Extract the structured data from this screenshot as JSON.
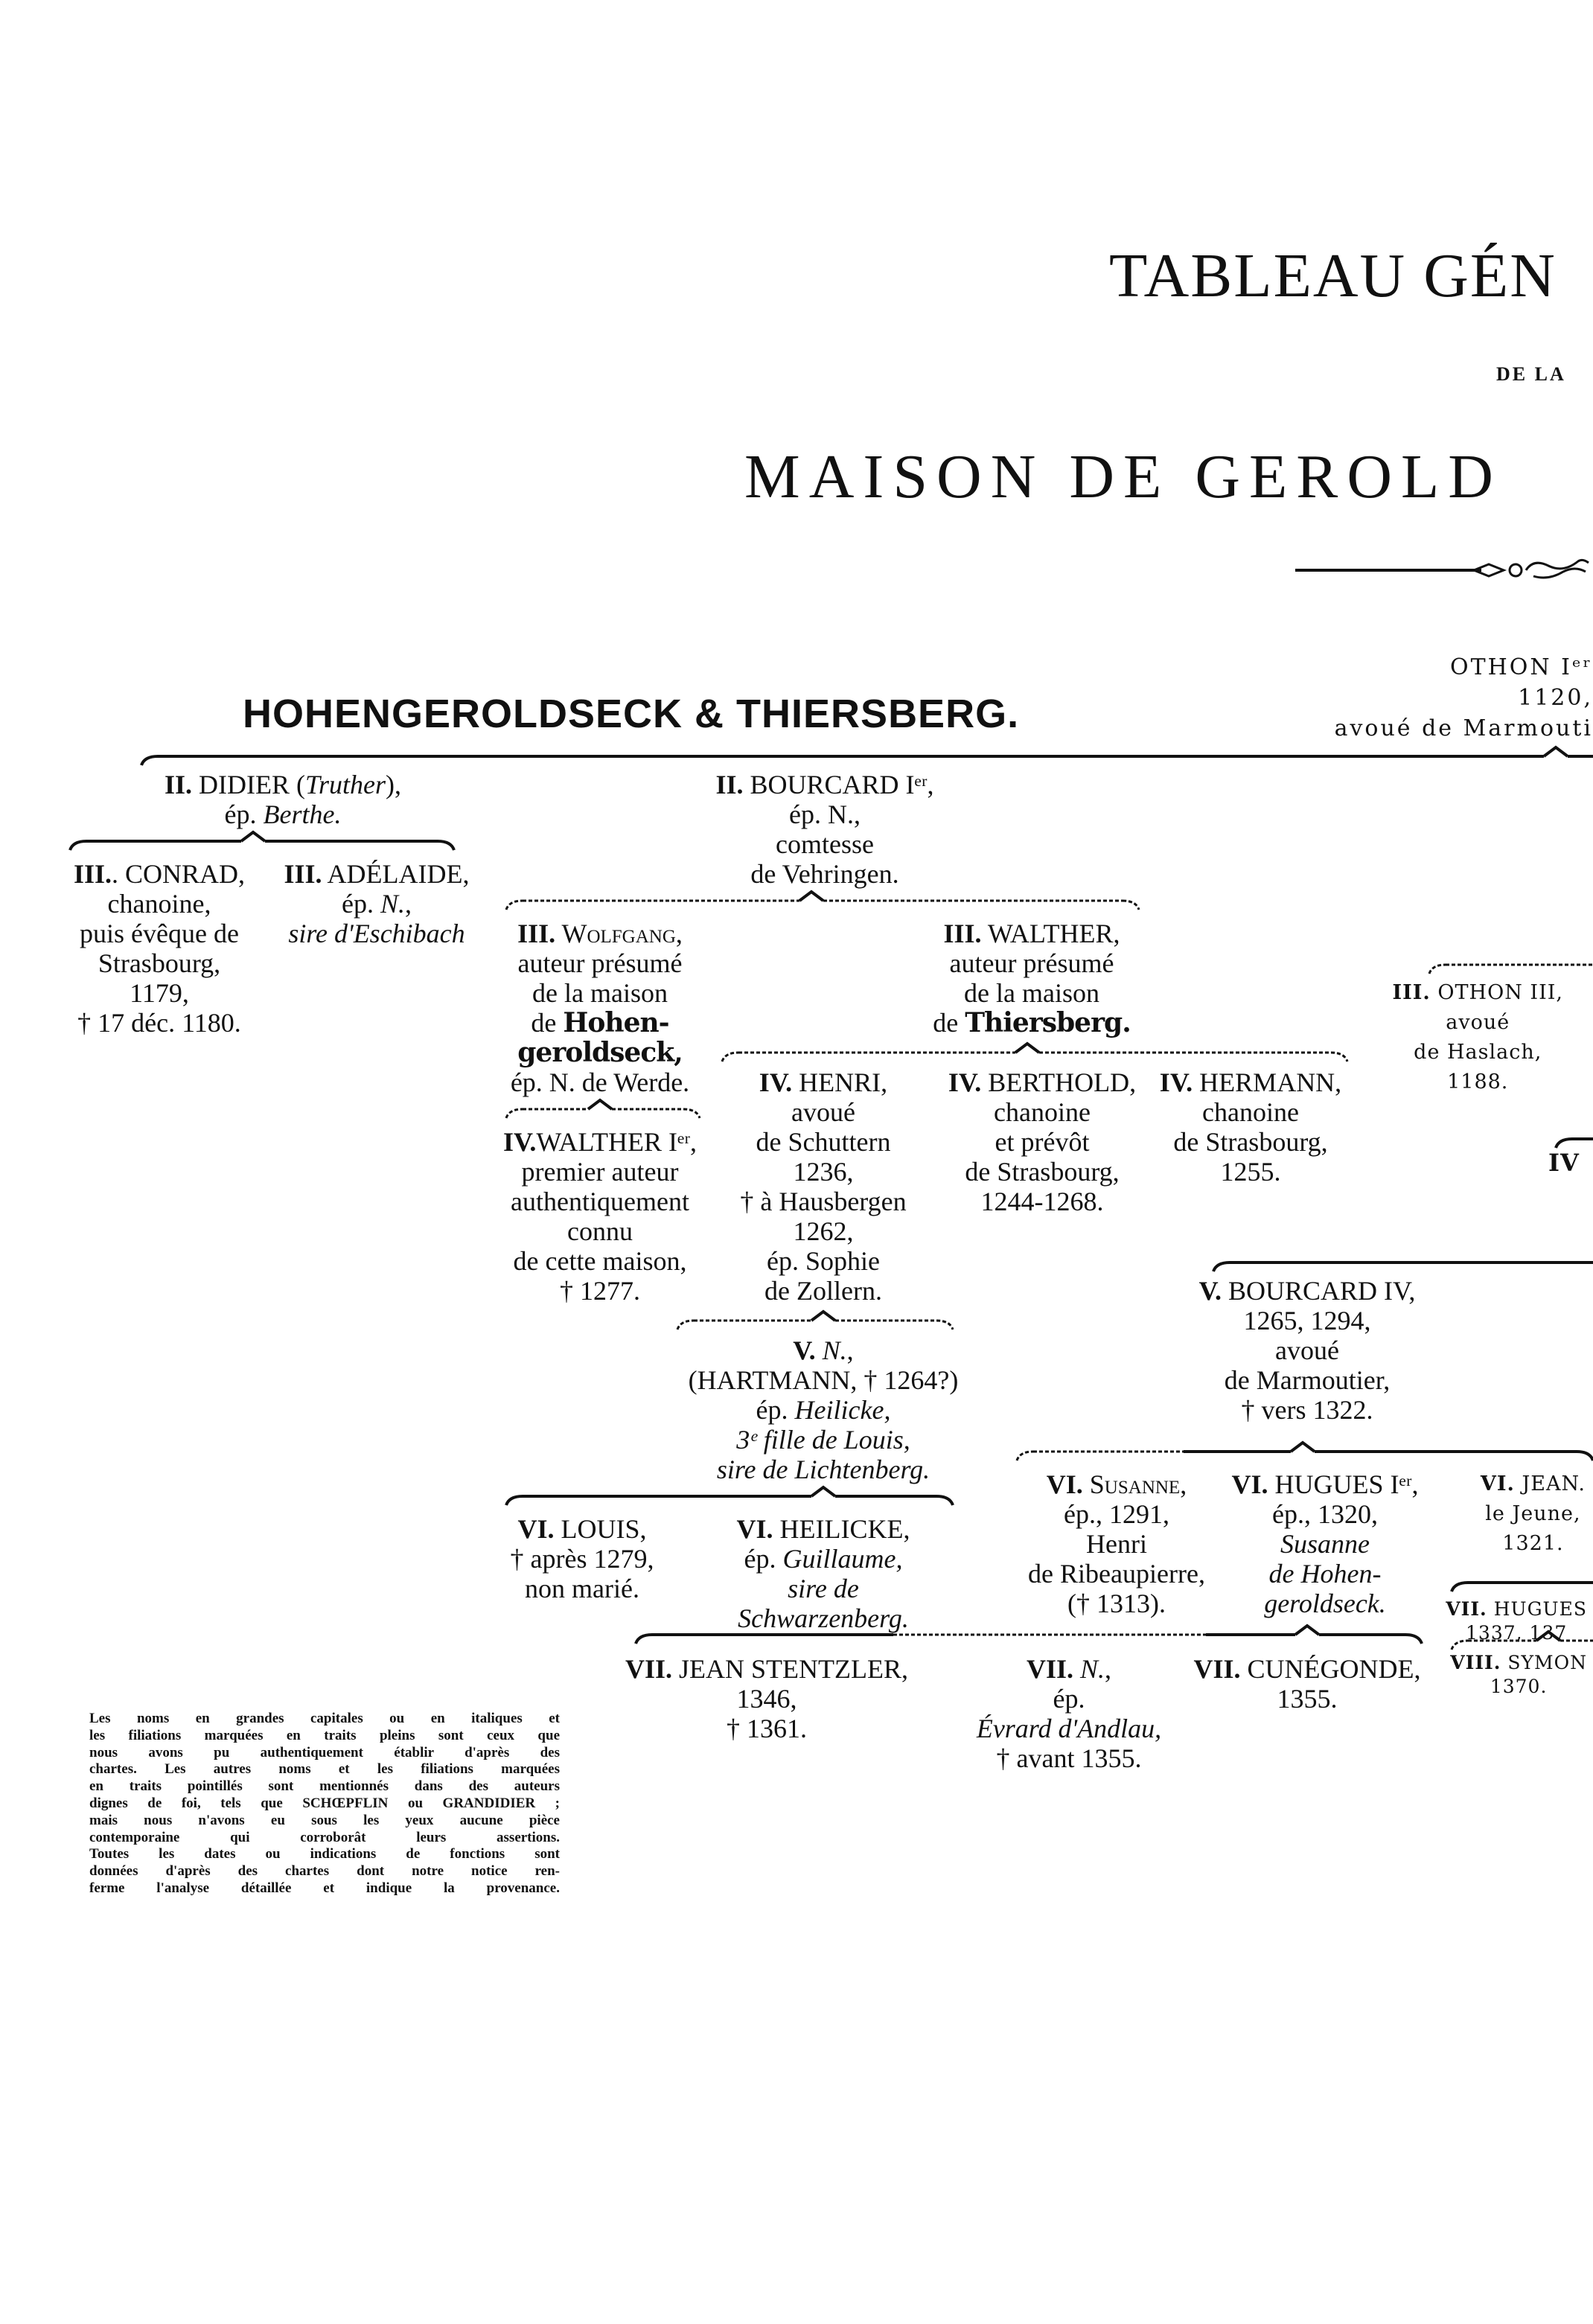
{
  "header": {
    "title": "TABLEAU GÉN",
    "connector": "DE LA",
    "subtitle": "MAISON DE GEROLD",
    "branch_title": "HOHENGEROLDSECK & THIERSBERG."
  },
  "othon1": [
    "OTHON Iᵉʳ",
    "1120,",
    "avoué de Marmouti"
  ],
  "partial_label": "IV",
  "nodes": {
    "didier": [
      [
        [
          "II.",
          "b"
        ],
        [
          " DIDIER (",
          ""
        ],
        [
          "Truther",
          "i"
        ],
        [
          "),",
          ""
        ]
      ],
      [
        [
          "ép. ",
          ""
        ],
        [
          "Berthe.",
          "i"
        ]
      ]
    ],
    "conrad": [
      [
        [
          "III.",
          "b"
        ],
        [
          ". CONRAD,",
          ""
        ]
      ],
      "chanoine,",
      "puis évêque de",
      "Strasbourg,",
      "1179,",
      "† 17 déc. 1180."
    ],
    "adelaide": [
      [
        [
          "III.",
          "b"
        ],
        [
          " ADÉLAIDE,",
          ""
        ]
      ],
      [
        [
          "ép. ",
          ""
        ],
        [
          "N.",
          "i"
        ],
        [
          ",",
          ""
        ]
      ],
      [
        [
          "sire d'Eschibach",
          "i"
        ]
      ]
    ],
    "bourcard1": [
      [
        [
          "II.",
          "b"
        ],
        [
          " BOURCARD Iᵉʳ,",
          ""
        ]
      ],
      "ép. N.,",
      "comtesse",
      "de Vehringen."
    ],
    "wolfgang": [
      [
        [
          "III.",
          "b"
        ],
        [
          " Wolfgang,",
          "sc"
        ]
      ],
      "auteur présumé",
      "de la maison",
      [
        [
          "de ",
          ""
        ],
        [
          "Hohen-",
          "bold"
        ]
      ],
      [
        [
          "geroldseck,",
          "bold"
        ]
      ],
      "ép. N. de Werde."
    ],
    "walther1": [
      [
        [
          "IV.",
          "b"
        ],
        [
          "WALTHER Iᵉʳ,",
          ""
        ]
      ],
      "premier auteur",
      "authentiquement",
      "connu",
      "de cette maison,",
      "† 1277."
    ],
    "walther3": [
      [
        [
          "III.",
          "b"
        ],
        [
          " WALTHER,",
          ""
        ]
      ],
      "auteur présumé",
      "de la maison",
      [
        [
          "de ",
          ""
        ],
        [
          "Thiersberg.",
          "bold"
        ]
      ]
    ],
    "henri": [
      [
        [
          "IV.",
          "b"
        ],
        [
          " HENRI,",
          ""
        ]
      ],
      "avoué",
      "de Schuttern",
      "1236,",
      "† à Hausbergen",
      "1262,",
      "ép. Sophie",
      "de Zollern."
    ],
    "berthold": [
      [
        [
          "IV.",
          "b"
        ],
        [
          " BERTHOLD,",
          ""
        ]
      ],
      "chanoine",
      "et prévôt",
      "de Strasbourg,",
      "1244-1268."
    ],
    "hermann": [
      [
        [
          "IV.",
          "b"
        ],
        [
          " HERMANN,",
          ""
        ]
      ],
      "chanoine",
      "de Strasbourg,",
      "1255."
    ],
    "othon3": [
      [
        [
          "III.",
          "b"
        ],
        [
          " OTHON III,",
          ""
        ]
      ],
      "avoué",
      "de Haslach,",
      "1188."
    ],
    "vn": [
      [
        [
          "V.",
          "b"
        ],
        [
          " ",
          ""
        ],
        [
          "N.",
          "i"
        ],
        [
          ",",
          ""
        ]
      ],
      "(HARTMANN, † 1264?)",
      [
        [
          "ép. ",
          ""
        ],
        [
          "Heilicke,",
          "i"
        ]
      ],
      [
        [
          "3ᵉ fille de Louis,",
          "i"
        ]
      ],
      [
        [
          "sire de Lichtenberg.",
          "i"
        ]
      ]
    ],
    "bourcard4": [
      [
        [
          "V.",
          "b"
        ],
        [
          " BOURCARD IV,",
          ""
        ]
      ],
      "1265, 1294,",
      "avoué",
      "de Marmoutier,",
      "† vers 1322."
    ],
    "louis": [
      [
        [
          "VI.",
          "b"
        ],
        [
          " LOUIS,",
          ""
        ]
      ],
      "† après 1279,",
      "non marié."
    ],
    "heilicke": [
      [
        [
          "VI.",
          "b"
        ],
        [
          " HEILICKE,",
          ""
        ]
      ],
      [
        [
          "ép. ",
          ""
        ],
        [
          "Guillaume,",
          "i"
        ]
      ],
      [
        [
          "sire de",
          "i"
        ]
      ],
      [
        [
          "Schwarzenberg.",
          "i"
        ]
      ]
    ],
    "susanne": [
      [
        [
          "VI.",
          "b"
        ],
        [
          " Susanne,",
          "sc"
        ]
      ],
      "ép., 1291,",
      "Henri",
      "de Ribeaupierre,",
      "(† 1313)."
    ],
    "hugues1": [
      [
        [
          "VI.",
          "b"
        ],
        [
          " HUGUES Iᵉʳ,",
          ""
        ]
      ],
      "ép., 1320,",
      [
        [
          "Susanne",
          "i"
        ]
      ],
      [
        [
          "de Hohen-",
          "i"
        ]
      ],
      [
        [
          "geroldseck.",
          "i"
        ]
      ]
    ],
    "jean6": [
      [
        [
          "VI.",
          "b"
        ],
        [
          " JEAN.",
          ""
        ]
      ],
      "le Jeune,",
      "1321."
    ],
    "stentzler": [
      [
        [
          "VII.",
          "b"
        ],
        [
          " JEAN STENTZLER,",
          ""
        ]
      ],
      "1346,",
      "† 1361."
    ],
    "viin": [
      [
        [
          "VII.",
          "b"
        ],
        [
          " ",
          ""
        ],
        [
          "N.",
          "i"
        ],
        [
          ",",
          ""
        ]
      ],
      "ép.",
      [
        [
          "Évrard d'Andlau,",
          "i"
        ]
      ],
      "† avant 1355."
    ],
    "cunegonde": [
      [
        [
          "VII.",
          "b"
        ],
        [
          " CUNÉGONDE,",
          ""
        ]
      ],
      "1355."
    ],
    "hugues7": [
      [
        [
          "VII.",
          "b"
        ],
        [
          " HUGUES",
          ""
        ]
      ],
      "1337, 137"
    ],
    "symon": [
      [
        [
          "VIII.",
          "b"
        ],
        [
          " SYMON",
          ""
        ]
      ],
      "1370."
    ]
  },
  "footnote": [
    "Les noms en grandes capitales ou en italiques et",
    "les filiations marquées en traits pleins sont ceux que",
    "nous avons pu authentiquement établir d'après des",
    "chartes. Les autres noms et les filiations marquées",
    "en traits pointillés sont mentionnés dans des auteurs",
    "dignes de foi, tels que SCHŒPFLIN ou GRANDIDIER ;",
    "mais nous n'avons eu sous les yeux aucune pièce",
    "contemporaine qui corroborât leurs assertions.",
    "Toutes les dates ou indications de fonctions sont",
    "données d'après des chartes dont notre notice ren-",
    "ferme l'analyse détaillée et indique la provenance."
  ],
  "legend": {
    "solid_line": "traits pleins",
    "dotted_line": "traits pointillés"
  }
}
